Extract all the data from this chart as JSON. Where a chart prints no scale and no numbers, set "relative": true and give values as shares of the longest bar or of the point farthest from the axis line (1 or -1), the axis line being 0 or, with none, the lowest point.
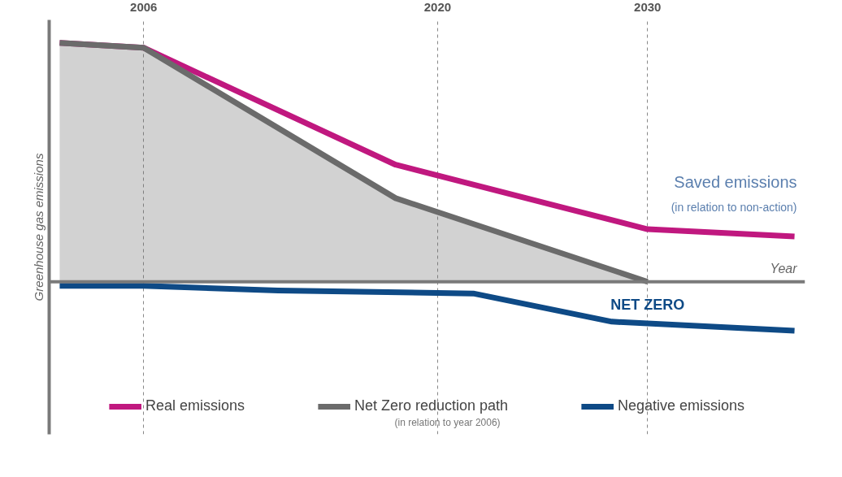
{
  "chart_data": {
    "type": "line",
    "relative": true,
    "ylabel": "Greenhouse gas emissions",
    "xlabel": "Year",
    "xlim": [
      2001.5,
      2037.5
    ],
    "xticks": [
      2006,
      2020,
      2030
    ],
    "grid": "x",
    "legend": "bottom",
    "series": [
      {
        "name": "Real emissions",
        "color": "#c0187f",
        "x": [
          2002,
          2006,
          2018,
          2030,
          2037
        ],
        "values": [
          1,
          0.98,
          0.49,
          0.22,
          0.19
        ]
      },
      {
        "name": "Net Zero reduction path",
        "color": "#6b6b6b",
        "type": "area",
        "x": [
          2002,
          2006,
          2018,
          2030
        ],
        "values": [
          1,
          0.98,
          0.35,
          0
        ]
      },
      {
        "name": "Negative emissions",
        "color": "#0e4a86",
        "x": [
          2002,
          2006,
          2012.4,
          2021.7,
          2028.3,
          2037
        ],
        "values": [
          -0.017,
          -0.017,
          -0.037,
          -0.049,
          -0.167,
          -0.205
        ]
      }
    ],
    "ref_lines": [
      {
        "axis": "y",
        "value": 0,
        "color": "#7a7a7a"
      }
    ],
    "annotations": [
      "Saved emissions",
      "(in relation to non-action)",
      "(in relation to year 2006)",
      {
        "text": "NET ZERO",
        "x": 2030,
        "y": 0
      }
    ]
  }
}
